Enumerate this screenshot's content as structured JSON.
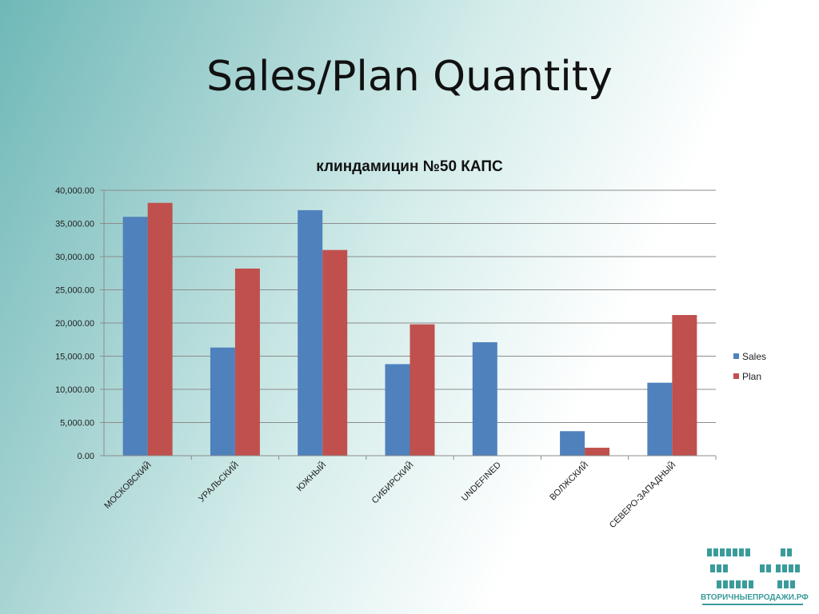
{
  "slide": {
    "title": "Sales/Plan Quantity"
  },
  "chart_data": {
    "type": "bar",
    "title": "клиндамицин №50 КАПС",
    "categories": [
      "МОСКОВСКИЙ",
      "УРАЛЬСКИЙ",
      "ЮЖНЫЙ",
      "СИБИРСКИЙ",
      "UNDEFINED",
      "ВОЛЖСКИЙ",
      "СЕВЕРО-ЗАПАДНЫЙ"
    ],
    "series": [
      {
        "name": "Sales",
        "color": "#4f81bd",
        "values": [
          36000,
          16300,
          37000,
          13800,
          17100,
          3700,
          11000
        ]
      },
      {
        "name": "Plan",
        "color": "#c0504d",
        "values": [
          38100,
          28200,
          31000,
          19800,
          0,
          1200,
          21200
        ]
      }
    ],
    "yticks": [
      "0.00",
      "5,000.00",
      "10,000.00",
      "15,000.00",
      "20,000.00",
      "25,000.00",
      "30,000.00",
      "35,000.00",
      "40,000.00"
    ],
    "ylim": [
      0,
      40000
    ],
    "grid": true,
    "legend_position": "right"
  },
  "logo": {
    "text": "ВТОРИЧНЫЕПРОДАЖИ.РФ",
    "color": "#3b9b9b"
  }
}
